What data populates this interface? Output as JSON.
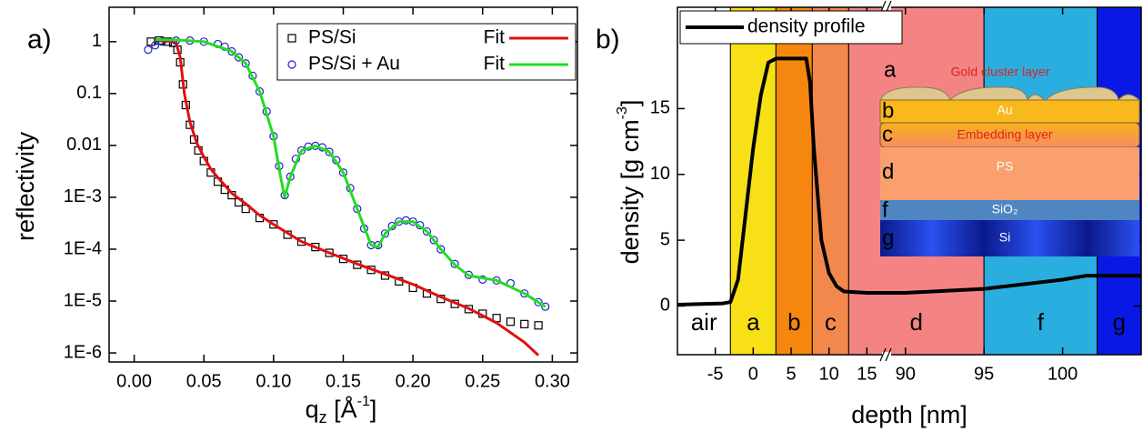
{
  "chart_data": [
    {
      "type": "line",
      "panel_label": "a)",
      "y_label": "reflectivity",
      "x_label": {
        "main": "q",
        "sub": "z",
        "rest": " [Å",
        "sup": "-1",
        "end": "]"
      },
      "ylog": true,
      "xlim": [
        -0.018,
        0.318
      ],
      "ylim": [
        6.7e-07,
        4.6
      ],
      "xticks": [
        {
          "value": 0,
          "label": "0.00"
        },
        0.05,
        {
          "value": 0.1,
          "label": "0.10"
        },
        0.15,
        {
          "value": 0.2,
          "label": "0.20"
        },
        0.25,
        {
          "value": 0.3,
          "label": "0.30"
        }
      ],
      "yticks": [
        {
          "value": 1e-06,
          "label": "1E-6"
        },
        {
          "value": 1e-05,
          "label": "1E-5"
        },
        {
          "value": 0.0001,
          "label": "1E-4"
        },
        {
          "value": 0.001,
          "label": "1E-3"
        },
        0.01,
        0.1,
        1
      ],
      "legend": "upper right",
      "series": [
        {
          "name": "PS/Si",
          "color": "#000000",
          "marker": "square",
          "x": [
            0.012,
            0.018,
            0.024,
            0.028,
            0.031,
            0.033,
            0.035,
            0.037,
            0.04,
            0.043,
            0.046,
            0.05,
            0.055,
            0.06,
            0.065,
            0.07,
            0.075,
            0.08,
            0.09,
            0.1,
            0.11,
            0.12,
            0.13,
            0.14,
            0.15,
            0.16,
            0.17,
            0.18,
            0.19,
            0.2,
            0.21,
            0.22,
            0.23,
            0.24,
            0.25,
            0.26,
            0.27,
            0.28,
            0.29
          ],
          "values": [
            1.0,
            1.05,
            1.0,
            0.95,
            0.7,
            0.4,
            0.15,
            0.06,
            0.025,
            0.013,
            0.008,
            0.005,
            0.003,
            0.002,
            0.0014,
            0.0011,
            0.0008,
            0.0006,
            0.0004,
            0.0003,
            0.00019,
            0.00014,
            0.00011,
            8.5e-05,
            6.5e-05,
            5e-05,
            4e-05,
            3.1e-05,
            2.4e-05,
            1.8e-05,
            1.4e-05,
            1.1e-05,
            8.8e-06,
            7e-06,
            5.7e-06,
            4.7e-06,
            4e-06,
            3.6e-06,
            3.4e-06
          ]
        },
        {
          "name": "Fit",
          "color": "#e01010",
          "x": [
            0.015,
            0.025,
            0.03,
            0.033,
            0.036,
            0.04,
            0.045,
            0.05,
            0.055,
            0.06,
            0.07,
            0.08,
            0.09,
            0.1,
            0.12,
            0.14,
            0.16,
            0.18,
            0.2,
            0.22,
            0.24,
            0.26,
            0.28,
            0.29
          ],
          "values": [
            1.05,
            1.02,
            0.95,
            0.5,
            0.1,
            0.028,
            0.011,
            0.006,
            0.0035,
            0.0024,
            0.0012,
            0.00075,
            0.00045,
            0.0003,
            0.00014,
            8.5e-05,
            5.2e-05,
            3.3e-05,
            2.1e-05,
            1.2e-05,
            7.2e-06,
            3.8e-06,
            1.6e-06,
            9e-07
          ]
        },
        {
          "name": "PS/Si + Au",
          "color": "#2020d0",
          "marker": "circle",
          "x": [
            0.01,
            0.015,
            0.02,
            0.03,
            0.04,
            0.05,
            0.06,
            0.065,
            0.07,
            0.075,
            0.08,
            0.085,
            0.09,
            0.095,
            0.1,
            0.104,
            0.108,
            0.112,
            0.116,
            0.12,
            0.125,
            0.13,
            0.135,
            0.14,
            0.145,
            0.15,
            0.155,
            0.16,
            0.165,
            0.17,
            0.175,
            0.18,
            0.185,
            0.19,
            0.195,
            0.2,
            0.205,
            0.21,
            0.215,
            0.22,
            0.23,
            0.24,
            0.25,
            0.26,
            0.27,
            0.28,
            0.29,
            0.295
          ],
          "values": [
            0.7,
            0.85,
            1.0,
            1.05,
            1.05,
            1.0,
            0.9,
            0.8,
            0.65,
            0.5,
            0.38,
            0.22,
            0.11,
            0.045,
            0.015,
            0.004,
            0.0011,
            0.0025,
            0.0055,
            0.008,
            0.0095,
            0.0098,
            0.0092,
            0.0075,
            0.0052,
            0.003,
            0.0015,
            0.0006,
            0.00025,
            0.00012,
            0.00012,
            0.0002,
            0.00028,
            0.00034,
            0.00036,
            0.00034,
            0.00029,
            0.00022,
            0.00015,
            0.0001,
            5.2e-05,
            3.2e-05,
            2.6e-05,
            2.5e-05,
            2.2e-05,
            1.4e-05,
            9.5e-06,
            7.8e-06
          ]
        },
        {
          "name": "Fit",
          "color": "#22dd22",
          "x": [
            0.015,
            0.03,
            0.05,
            0.07,
            0.08,
            0.09,
            0.1,
            0.105,
            0.108,
            0.112,
            0.12,
            0.13,
            0.14,
            0.15,
            0.16,
            0.17,
            0.175,
            0.18,
            0.19,
            0.2,
            0.21,
            0.22,
            0.23,
            0.24,
            0.26,
            0.28,
            0.295
          ],
          "values": [
            1.1,
            1.08,
            1.0,
            0.65,
            0.38,
            0.11,
            0.015,
            0.0025,
            0.001,
            0.0025,
            0.008,
            0.0098,
            0.0075,
            0.003,
            0.0006,
            0.00012,
            0.00011,
            0.0002,
            0.00034,
            0.00034,
            0.00022,
            0.0001,
            5e-05,
            3.1e-05,
            2.5e-05,
            1.4e-05,
            7.8e-06
          ]
        }
      ]
    },
    {
      "type": "area",
      "panel_label": "b)",
      "x_label": "depth [nm]",
      "y_label": {
        "main": "density [g cm",
        "sup": "-3",
        "end": "]"
      },
      "xlim": [
        -10,
        105
      ],
      "xbreak": [
        17.6,
        88.8
      ],
      "ylim": [
        -3.7,
        22.7
      ],
      "xticks": [
        -5,
        0,
        5,
        10,
        15,
        90,
        95,
        100
      ],
      "yticks": [
        0,
        5,
        10,
        15
      ],
      "legend": "upper left",
      "series": [
        {
          "name": "density profile",
          "color": "#000000",
          "x": [
            -10,
            -4,
            -3,
            -2,
            -1,
            0,
            1,
            2,
            3,
            7,
            7.5,
            8,
            9,
            10,
            11,
            12,
            15,
            90,
            95,
            100,
            101.5,
            105
          ],
          "values": [
            0.1,
            0.2,
            0.3,
            2,
            7,
            12,
            16,
            18.5,
            18.8,
            18.8,
            17,
            12,
            5,
            2.5,
            1.5,
            1.1,
            1.0,
            1.0,
            1.3,
            2.0,
            2.3,
            2.3
          ]
        }
      ],
      "layers": [
        {
          "label": "air",
          "start": -10,
          "end": -3,
          "color": "#ffffff"
        },
        {
          "label": "a",
          "start": -3,
          "end": 3,
          "color": "#f7e016"
        },
        {
          "label": "b",
          "start": 3,
          "end": 7.8,
          "color": "#f5870f"
        },
        {
          "label": "c",
          "start": 7.8,
          "end": 12.6,
          "color": "#f3884c"
        },
        {
          "label": "d",
          "start": 12.6,
          "end": 95,
          "color": "#f48484"
        },
        {
          "label": "f",
          "start": 95,
          "end": 102.2,
          "color": "#2aaee0"
        },
        {
          "label": "g",
          "start": 102.2,
          "end": 105,
          "color": "#0a18e6"
        }
      ],
      "inset": {
        "letters": [
          "a",
          "b",
          "c",
          "d",
          "f",
          "g"
        ],
        "captions": [
          "Gold cluster layer",
          "Au",
          "Embedding layer",
          "PS",
          "SiO₂",
          "Si"
        ]
      }
    }
  ]
}
